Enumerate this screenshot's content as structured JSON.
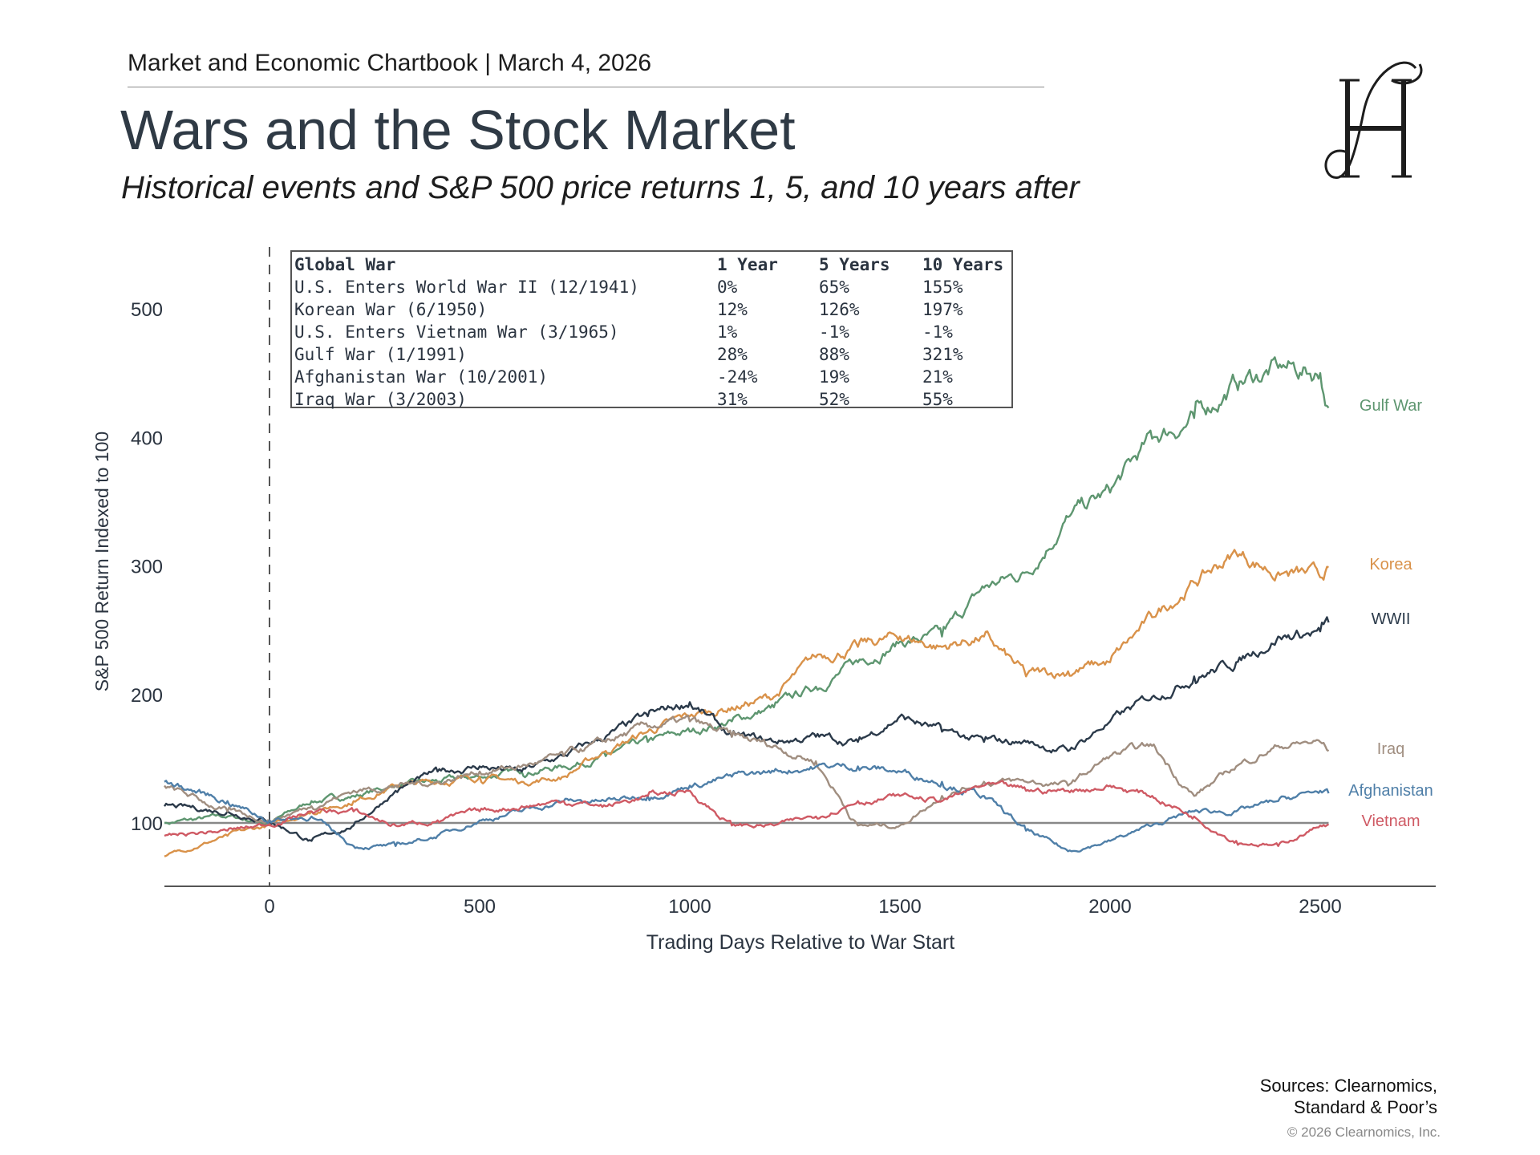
{
  "header": {
    "chartbook": "Market and Economic Chartbook | March 4, 2026",
    "title": "Wars and the Stock Market",
    "subtitle": "Historical events and S&P 500 price returns 1, 5, and 10 years after",
    "logo_text": "JH"
  },
  "table": {
    "headers": [
      "Global War",
      "1 Year",
      "5 Years",
      "10 Years"
    ],
    "rows": [
      [
        "U.S. Enters World War II (12/1941)",
        "0%",
        "65%",
        "155%"
      ],
      [
        "Korean War (6/1950)",
        "12%",
        "126%",
        "197%"
      ],
      [
        "U.S. Enters Vietnam War (3/1965)",
        "1%",
        "-1%",
        "-1%"
      ],
      [
        "Gulf War (1/1991)",
        "28%",
        "88%",
        "321%"
      ],
      [
        "Afghanistan War (10/2001)",
        "-24%",
        "19%",
        "21%"
      ],
      [
        "Iraq War (3/2003)",
        "31%",
        "52%",
        "55%"
      ]
    ]
  },
  "chart_data": {
    "type": "line",
    "title": "",
    "xlabel": "Trading Days Relative to War Start",
    "ylabel": "S&P 500 Return Indexed to 100",
    "xlim": [
      -250,
      2790
    ],
    "ylim": [
      50,
      540
    ],
    "xticks": [
      "0",
      "500",
      "1000",
      "1500",
      "2000",
      "2500"
    ],
    "xtick_values": [
      0,
      500,
      1000,
      1500,
      2000,
      2500
    ],
    "yticks": [
      "100",
      "200",
      "300",
      "400",
      "500"
    ],
    "ytick_values": [
      100,
      200,
      300,
      400,
      500
    ],
    "reference_line": 100,
    "event_line_x": 0,
    "grid": false,
    "legend": "direct labels at right end of lines",
    "x": [
      -250,
      -100,
      0,
      100,
      200,
      300,
      400,
      500,
      600,
      700,
      800,
      900,
      1000,
      1100,
      1200,
      1300,
      1400,
      1500,
      1600,
      1700,
      1800,
      1900,
      2000,
      2100,
      2200,
      2300,
      2400,
      2500,
      2520
    ],
    "series": [
      {
        "name": "Gulf War",
        "color": "#5e9670",
        "values": [
          100,
          105,
          100,
          117,
          121,
          129,
          132,
          136,
          140,
          144,
          152,
          163,
          171,
          179,
          190,
          206,
          225,
          241,
          245,
          283,
          295,
          338,
          357,
          399,
          415,
          442,
          454,
          450,
          423
        ]
      },
      {
        "name": "Korea",
        "color": "#d9924a",
        "values": [
          74,
          90,
          98,
          109,
          117,
          129,
          132,
          136,
          132,
          136,
          156,
          171,
          183,
          190,
          198,
          229,
          237,
          245,
          237,
          245,
          214,
          218,
          225,
          260,
          287,
          310,
          295,
          291,
          299
        ]
      },
      {
        "name": "WWII",
        "color": "#2b3a4a",
        "values": [
          113,
          109,
          102,
          86,
          98,
          125,
          140,
          144,
          140,
          152,
          167,
          183,
          194,
          167,
          163,
          167,
          163,
          183,
          171,
          163,
          163,
          156,
          179,
          198,
          214,
          225,
          245,
          249,
          256
        ]
      },
      {
        "name": "Iraq",
        "color": "#a08e80",
        "values": [
          129,
          109,
          102,
          113,
          125,
          129,
          132,
          140,
          144,
          152,
          163,
          175,
          179,
          167,
          160,
          148,
          98,
          98,
          121,
          132,
          132,
          129,
          152,
          160,
          121,
          144,
          160,
          163,
          156
        ]
      },
      {
        "name": "Afghanistan",
        "color": "#4f7fa8",
        "values": [
          132,
          117,
          102,
          105,
          82,
          82,
          90,
          102,
          109,
          117,
          117,
          121,
          129,
          136,
          140,
          144,
          144,
          140,
          132,
          121,
          94,
          78,
          86,
          98,
          109,
          109,
          117,
          125,
          123
        ]
      },
      {
        "name": "Vietnam",
        "color": "#cf5a64",
        "values": [
          90,
          94,
          99,
          109,
          109,
          98,
          102,
          109,
          113,
          117,
          113,
          121,
          125,
          98,
          98,
          105,
          117,
          121,
          117,
          129,
          125,
          125,
          129,
          121,
          105,
          86,
          82,
          98,
          99
        ]
      }
    ]
  },
  "footer": {
    "sources_line1": "Sources: Clearnomics,",
    "sources_line2": "Standard & Poor’s",
    "copyright": "© 2026 Clearnomics, Inc."
  }
}
